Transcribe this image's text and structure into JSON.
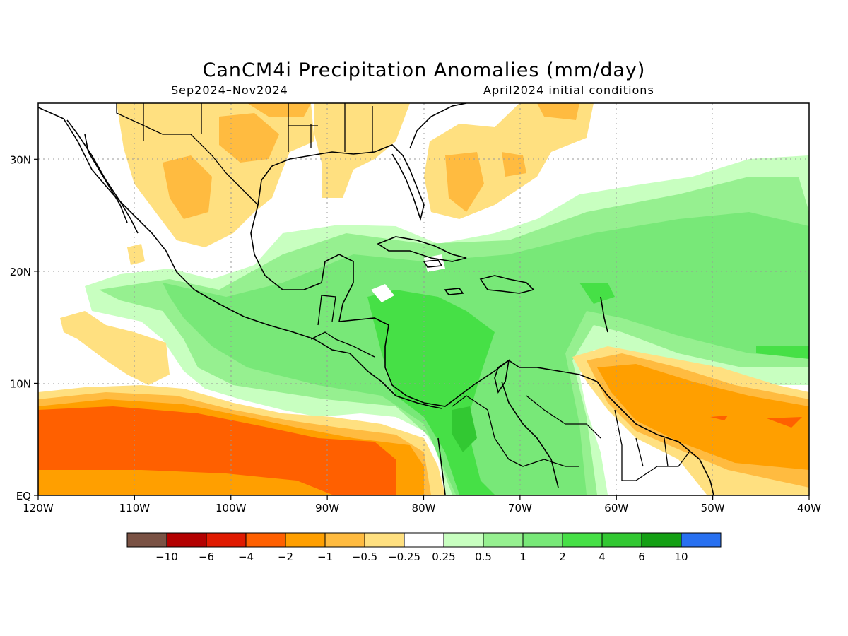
{
  "header": {
    "title": "CanCM4i Precipitation Anomalies (mm/day)",
    "period": "Sep2024–Nov2024",
    "init": "April2024 initial conditions"
  },
  "map": {
    "lon_range": [
      -120,
      -40
    ],
    "lat_range": [
      0,
      35
    ],
    "lon_ticks": [
      {
        "v": -120,
        "label": "120W"
      },
      {
        "v": -110,
        "label": "110W"
      },
      {
        "v": -100,
        "label": "100W"
      },
      {
        "v": -90,
        "label": "90W"
      },
      {
        "v": -80,
        "label": "80W"
      },
      {
        "v": -70,
        "label": "70W"
      },
      {
        "v": -60,
        "label": "60W"
      },
      {
        "v": -50,
        "label": "50W"
      },
      {
        "v": -40,
        "label": "40W"
      }
    ],
    "lat_ticks": [
      {
        "v": 0,
        "label": "EQ"
      },
      {
        "v": 10,
        "label": "10N"
      },
      {
        "v": 20,
        "label": "20N"
      },
      {
        "v": 30,
        "label": "30N"
      }
    ],
    "grid": true
  },
  "legend": {
    "colors": [
      "#7a5244",
      "#b30000",
      "#e01a00",
      "#ff6000",
      "#ff9f00",
      "#ffbb40",
      "#ffe080",
      "#ffffff",
      "#c8ffc0",
      "#96f090",
      "#78e878",
      "#46e046",
      "#32c832",
      "#14a014",
      "#2870f0"
    ],
    "labels": [
      "−10",
      "−6",
      "−4",
      "−2",
      "−1",
      "−0.5",
      "−0.25",
      "0.25",
      "0.5",
      "1",
      "2",
      "4",
      "6",
      "10"
    ]
  }
}
